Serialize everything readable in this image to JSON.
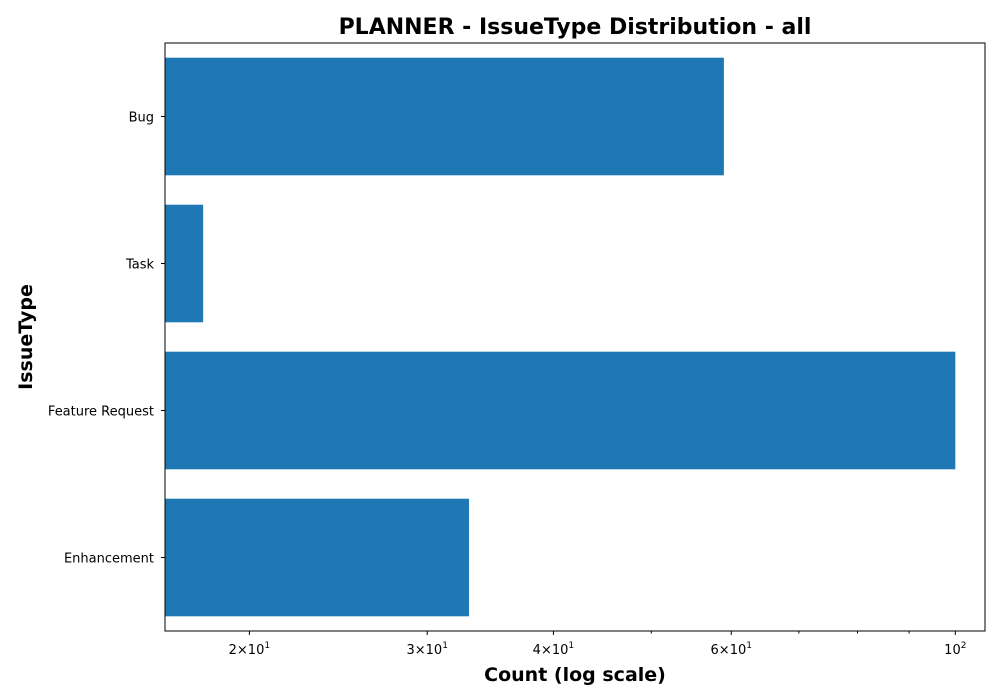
{
  "chart_data": {
    "type": "bar",
    "orientation": "horizontal",
    "title": "PLANNER - IssueType Distribution - all",
    "xlabel": "Count (log scale)",
    "ylabel": "IssueType",
    "x_scale": "log",
    "xlim": [
      16.5,
      107
    ],
    "categories": [
      "Bug",
      "Task",
      "Feature Request",
      "Enhancement"
    ],
    "values": [
      59,
      18,
      100,
      33
    ],
    "major_ticks": [
      {
        "value": 20,
        "mantissa": "2",
        "base": "10",
        "exponent": "1"
      },
      {
        "value": 30,
        "mantissa": "3",
        "base": "10",
        "exponent": "1"
      },
      {
        "value": 40,
        "mantissa": "4",
        "base": "10",
        "exponent": "1"
      },
      {
        "value": 60,
        "mantissa": "6",
        "base": "10",
        "exponent": "1"
      },
      {
        "value": 100,
        "mantissa": "",
        "base": "10",
        "exponent": "2"
      }
    ],
    "minor_ticks": [
      50,
      70,
      80,
      90
    ],
    "bar_color": "#1f77b4",
    "grid": false,
    "legend": false
  }
}
